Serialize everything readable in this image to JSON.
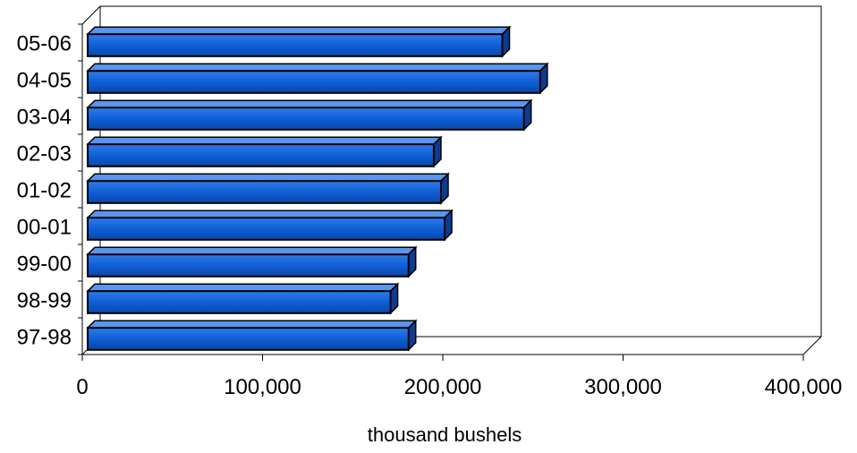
{
  "chart_data": {
    "type": "bar",
    "orientation": "horizontal",
    "style": "3d",
    "categories": [
      "05-06",
      "04-05",
      "03-04",
      "02-03",
      "01-02",
      "00-01",
      "99-00",
      "98-99",
      "97-98"
    ],
    "values": [
      233000,
      254000,
      245000,
      195000,
      199000,
      201000,
      181000,
      171000,
      181000
    ],
    "xlabel": "thousand bushels",
    "ylabel": "",
    "xlim": [
      0,
      400000
    ],
    "x_ticks": [
      0,
      100000,
      200000,
      300000,
      400000
    ],
    "x_tick_labels": [
      "0",
      "100,000",
      "200,000",
      "300,000",
      "400,000"
    ],
    "grid": false,
    "legend": "none",
    "bar_color": "#0F5FD6",
    "bar_edge_color": "#000000"
  }
}
